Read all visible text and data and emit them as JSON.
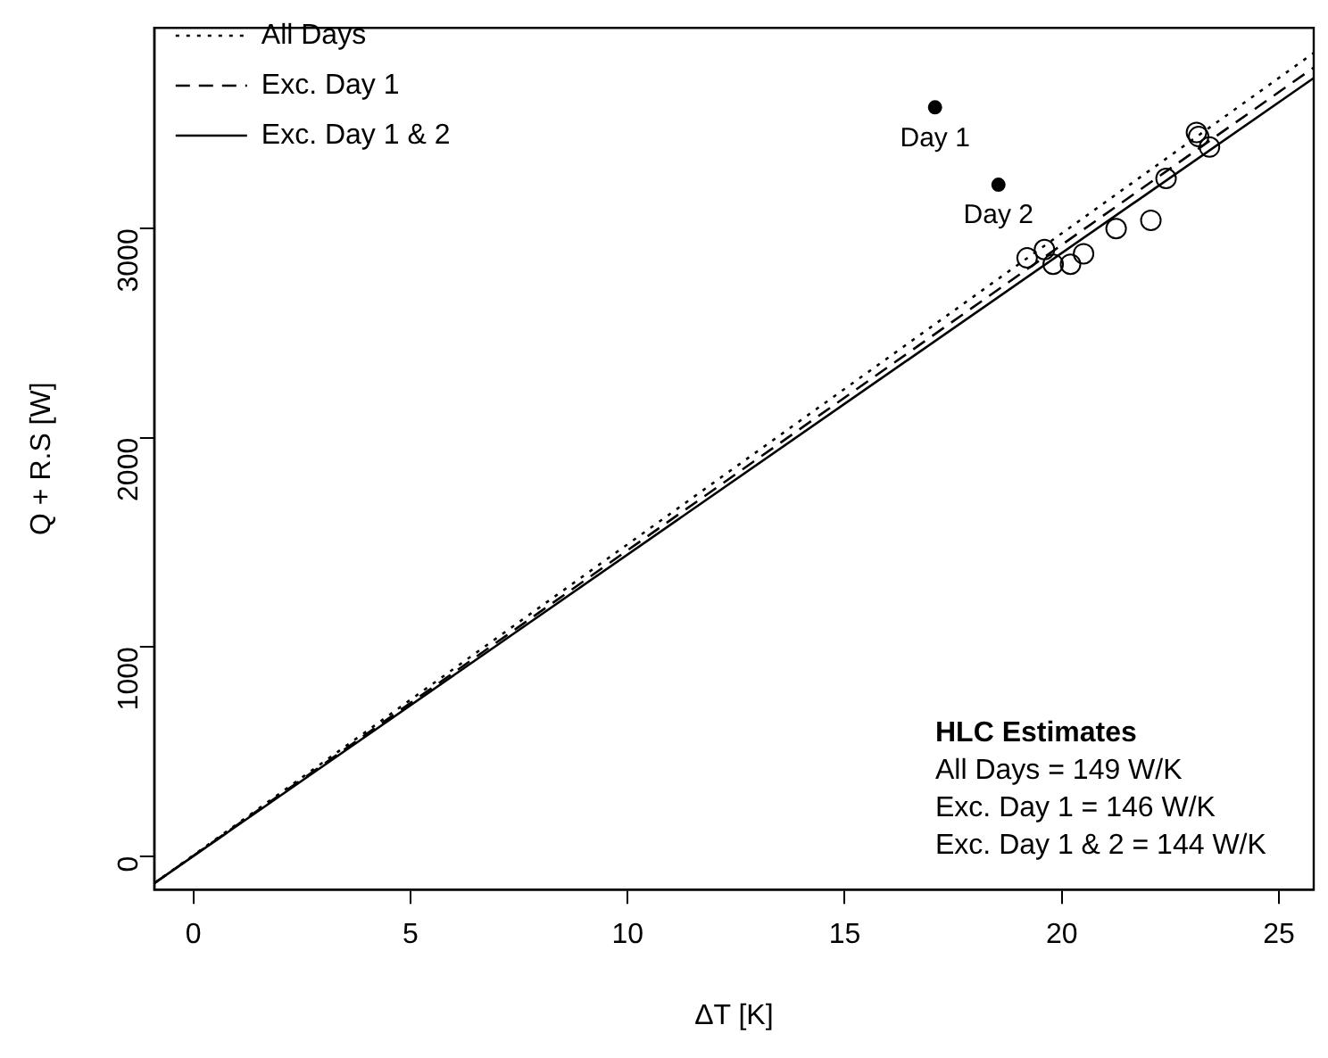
{
  "chart_data": {
    "type": "scatter",
    "xlabel": "ΔT [K]",
    "ylabel": "Q + R.S [W]",
    "xlim": [
      -0.9,
      25.8
    ],
    "ylim": [
      -160,
      3960
    ],
    "xticks": [
      0,
      5,
      10,
      15,
      20,
      25
    ],
    "yticks": [
      0,
      1000,
      2000,
      3000
    ],
    "grid": false,
    "legend": "top left",
    "marker": "circle",
    "series": [
      {
        "type": "scatter",
        "color": "#000000",
        "x": [
          17.08,
          18.54
        ],
        "values": [
          3580,
          3210
        ]
      },
      {
        "type": "scatter",
        "color": "#000000",
        "x": [
          19.2,
          19.6,
          19.8,
          20.2,
          20.5,
          21.25,
          22.05,
          22.4,
          23.1,
          23.15,
          23.4
        ],
        "values": [
          2860,
          2900,
          2830,
          2830,
          2880,
          3000,
          3040,
          3240,
          3460,
          3440,
          3390
        ]
      },
      {
        "type": "line",
        "name": "All Days",
        "color": "#000000",
        "line_style": "dotted",
        "marker": "none",
        "x": [
          -0.9,
          25.8
        ],
        "values": [
          -130,
          3840
        ]
      },
      {
        "type": "line",
        "name": "Exc. Day 1",
        "color": "#000000",
        "line_style": "dashed",
        "marker": "none",
        "x": [
          -0.9,
          25.8
        ],
        "values": [
          -130,
          3770
        ]
      },
      {
        "type": "line",
        "name": "Exc. Day 1 & 2",
        "color": "#000000",
        "line_style": "solid",
        "marker": "none",
        "x": [
          -0.9,
          25.8
        ],
        "values": [
          -130,
          3720
        ]
      }
    ],
    "annotations": [
      {
        "text": "Day 1",
        "x": 17.08,
        "y": 3580
      },
      {
        "text": "Day 2",
        "x": 18.54,
        "y": 3210
      },
      "HLC Estimates",
      "All Days = 149 W/K",
      "Exc. Day 1 = 146 W/K",
      "Exc. Day 1 & 2 = 144 W/K"
    ]
  }
}
